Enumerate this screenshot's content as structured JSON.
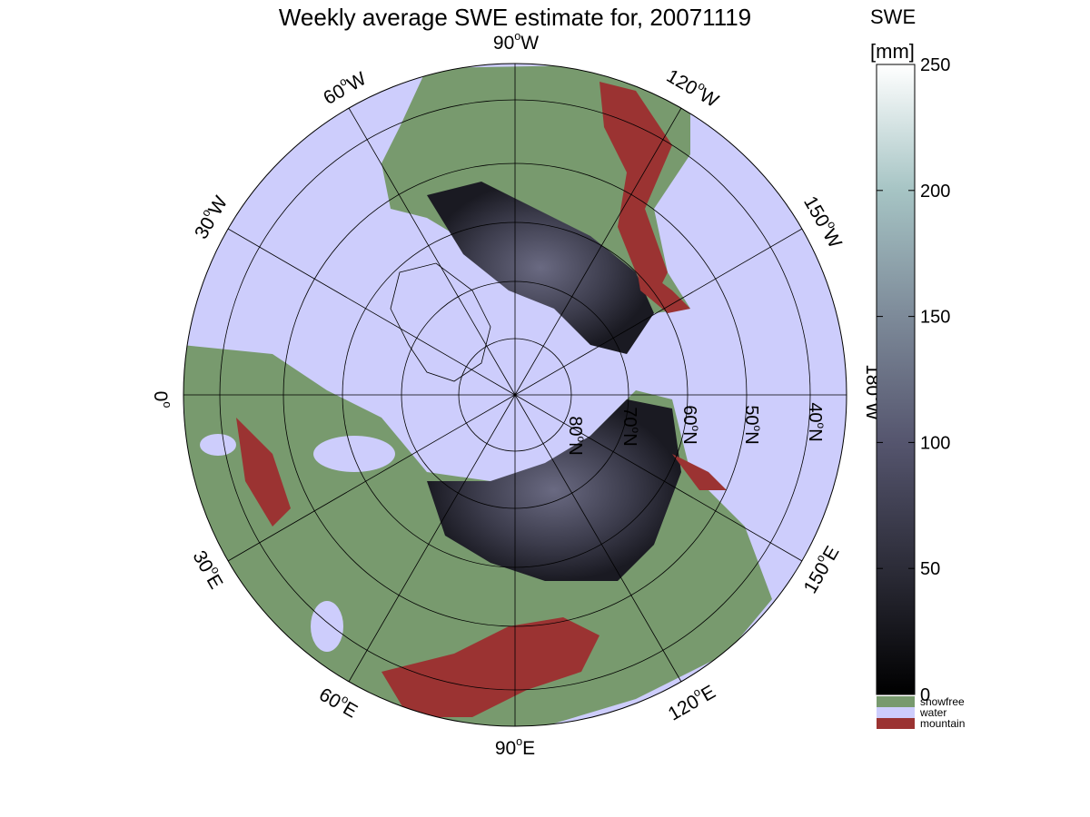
{
  "title": "Weekly average SWE estimate for, 20071119",
  "map": {
    "projection": "north polar stereographic",
    "colors": {
      "snowfree": "#789a6e",
      "water": "#cdcdfc",
      "mountain": "#9b3332",
      "snow_low": "#101014",
      "snow_mid": "#4a4a60",
      "snow_high": "#8fa8a8",
      "snow_max": "#ffffff",
      "gridline": "#000000"
    },
    "latitude_labels": [
      {
        "deg": "80",
        "hemi": "N"
      },
      {
        "deg": "70",
        "hemi": "N"
      },
      {
        "deg": "60",
        "hemi": "N"
      },
      {
        "deg": "50",
        "hemi": "N"
      },
      {
        "deg": "40",
        "hemi": "N"
      }
    ],
    "longitude_labels": [
      {
        "deg": "90",
        "hemi": "W"
      },
      {
        "deg": "120",
        "hemi": "W"
      },
      {
        "deg": "150",
        "hemi": "W"
      },
      {
        "deg": "180",
        "hemi": "W"
      },
      {
        "deg": "150",
        "hemi": "E"
      },
      {
        "deg": "120",
        "hemi": "E"
      },
      {
        "deg": "90",
        "hemi": "E"
      },
      {
        "deg": "60",
        "hemi": "E"
      },
      {
        "deg": "30",
        "hemi": "E"
      },
      {
        "deg": "0",
        "hemi": ""
      },
      {
        "deg": "30",
        "hemi": "W"
      },
      {
        "deg": "60",
        "hemi": "W"
      }
    ],
    "degree_symbol": "o"
  },
  "colorbar": {
    "title_line1": "SWE",
    "title_line2": "[mm]",
    "min": 0,
    "max": 250,
    "ticks": [
      "0",
      "50",
      "100",
      "150",
      "200",
      "250"
    ],
    "categories": [
      {
        "label": "snowfree",
        "color": "#789a6e"
      },
      {
        "label": "water",
        "color": "#cdcdfc"
      },
      {
        "label": "mountain",
        "color": "#9b3332"
      }
    ]
  }
}
